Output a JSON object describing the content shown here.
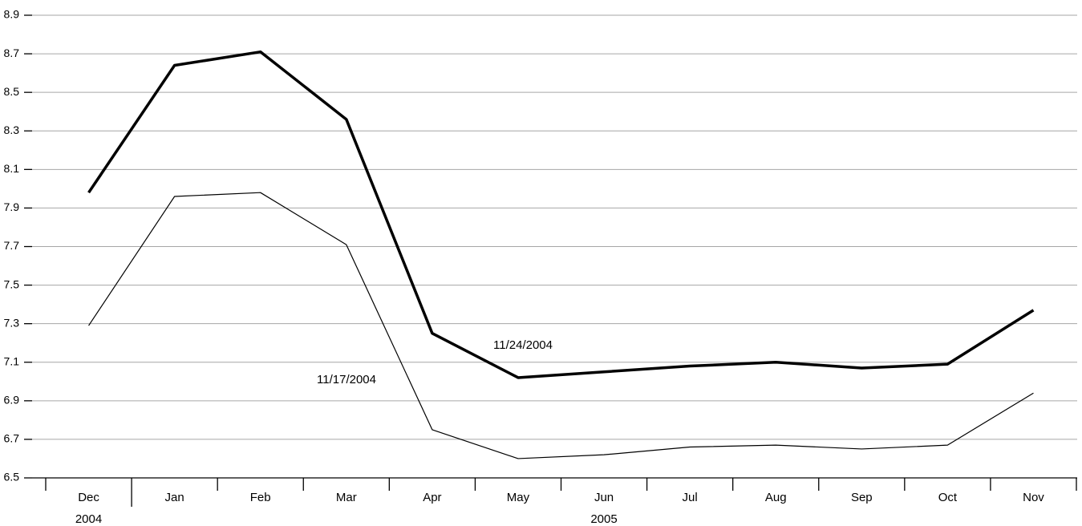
{
  "chart_data": {
    "type": "line",
    "categories": [
      "Dec",
      "Jan",
      "Feb",
      "Mar",
      "Apr",
      "May",
      "Jun",
      "Jul",
      "Aug",
      "Sep",
      "Oct",
      "Nov"
    ],
    "category_groups": [
      {
        "label": "2004",
        "count": 1
      },
      {
        "label": "2005",
        "count": 11
      }
    ],
    "series": [
      {
        "name": "11/24/2004",
        "color": "#000000",
        "values": [
          7.98,
          8.64,
          8.71,
          8.36,
          7.25,
          7.02,
          7.05,
          7.08,
          7.1,
          7.07,
          7.09,
          7.37
        ]
      },
      {
        "name": "11/17/2004",
        "color": "#000000",
        "values": [
          7.29,
          7.96,
          7.98,
          7.71,
          6.75,
          6.6,
          6.62,
          6.66,
          6.67,
          6.65,
          6.67,
          6.94
        ]
      }
    ],
    "ylim": [
      6.5,
      8.9
    ],
    "yticks": [
      6.5,
      6.7,
      6.9,
      7.1,
      7.3,
      7.5,
      7.7,
      7.9,
      8.1,
      8.3,
      8.5,
      8.7,
      8.9
    ],
    "grid": true
  }
}
